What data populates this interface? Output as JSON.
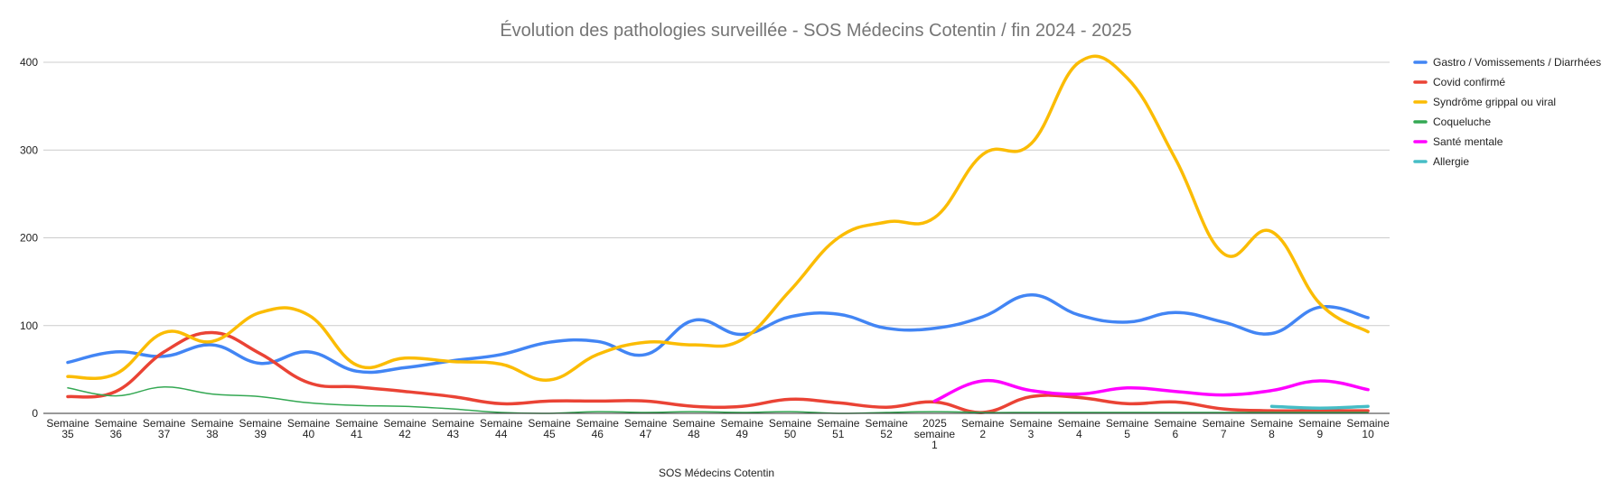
{
  "chart_data": {
    "type": "line",
    "title": "Évolution des pathologies surveillée - SOS Médecins Cotentin / fin 2024 - 2025",
    "xlabel": "SOS Médecins Cotentin",
    "ylabel": "",
    "ylim": [
      0,
      400
    ],
    "yticks": [
      0,
      100,
      200,
      300,
      400
    ],
    "grid": true,
    "legend_position": "right",
    "categories": [
      "Semaine 35",
      "Semaine 36",
      "Semaine 37",
      "Semaine 38",
      "Semaine 39",
      "Semaine 40",
      "Semaine 41",
      "Semaine 42",
      "Semaine 43",
      "Semaine 44",
      "Semaine 45",
      "Semaine 46",
      "Semaine 47",
      "Semaine 48",
      "Semaine 49",
      "Semaine 50",
      "Semaine 51",
      "Semaine 52",
      "2025 semaine 1",
      "Semaine 2",
      "Semaine 3",
      "Semaine 4",
      "Semaine 5",
      "Semaine 6",
      "Semaine 7",
      "Semaine 8",
      "Semaine 9",
      "Semaine 10"
    ],
    "series": [
      {
        "name": "Gastro / Vomissements / Diarrhées",
        "color": "#4285f4",
        "values": [
          58,
          70,
          65,
          78,
          57,
          70,
          48,
          52,
          60,
          67,
          81,
          82,
          67,
          106,
          90,
          110,
          113,
          97,
          97,
          110,
          135,
          112,
          104,
          115,
          104,
          91,
          121,
          109
        ]
      },
      {
        "name": "Covid confirmé",
        "color": "#ea4335",
        "values": [
          19,
          25,
          70,
          92,
          68,
          35,
          30,
          25,
          19,
          11,
          14,
          14,
          14,
          8,
          8,
          16,
          12,
          7,
          13,
          1,
          19,
          18,
          11,
          13,
          5,
          3,
          3,
          3
        ]
      },
      {
        "name": "Syndrôme grippal ou viral",
        "color": "#fbbc04",
        "values": [
          42,
          45,
          92,
          82,
          115,
          112,
          55,
          63,
          59,
          56,
          38,
          67,
          81,
          78,
          84,
          140,
          200,
          218,
          223,
          295,
          307,
          400,
          382,
          290,
          182,
          207,
          125,
          93
        ]
      },
      {
        "name": "Coqueluche",
        "color": "#34a853",
        "values": [
          29,
          20,
          30,
          22,
          19,
          12,
          9,
          8,
          5,
          1,
          0,
          2,
          1,
          2,
          1,
          2,
          0,
          1,
          2,
          1,
          1,
          1,
          1,
          1,
          1,
          1,
          1,
          1
        ]
      },
      {
        "name": "Santé mentale",
        "color": "#ff00ff",
        "values": [
          null,
          null,
          null,
          null,
          null,
          null,
          null,
          null,
          null,
          null,
          null,
          null,
          null,
          null,
          null,
          null,
          null,
          null,
          14,
          37,
          26,
          22,
          29,
          25,
          21,
          26,
          37,
          27
        ]
      },
      {
        "name": "Allergie",
        "color": "#46bdc6",
        "values": [
          null,
          null,
          null,
          null,
          null,
          null,
          null,
          null,
          null,
          null,
          null,
          null,
          null,
          null,
          null,
          null,
          null,
          null,
          null,
          null,
          null,
          null,
          null,
          null,
          null,
          8,
          6,
          8
        ]
      }
    ]
  }
}
